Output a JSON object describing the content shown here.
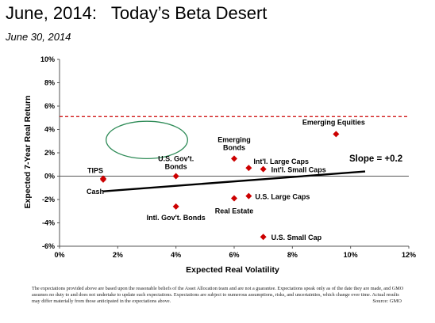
{
  "header": {
    "title": "June, 2014:   Today’s Beta Desert",
    "subtitle": "June 30, 2014"
  },
  "chart_data": {
    "type": "scatter",
    "xlabel": "Expected Real Volatility",
    "ylabel": "Expected 7-Year Real Return",
    "xlim": [
      0,
      12
    ],
    "ylim": [
      -6,
      10
    ],
    "x_ticks": [
      "0%",
      "2%",
      "4%",
      "6%",
      "8%",
      "10%",
      "12%"
    ],
    "y_ticks": [
      "10%",
      "8%",
      "6%",
      "4%",
      "2%",
      "0%",
      "-2%",
      "-4%",
      "-6%"
    ],
    "grid": "none",
    "marker_color": "#cc0000",
    "points": [
      {
        "name": "TIPS",
        "x": 1.5,
        "y": -0.2
      },
      {
        "name": "Cash",
        "x": 1.5,
        "y": -0.3
      },
      {
        "name": "U.S. Gov't. Bonds",
        "x": 4.0,
        "y": 0.0
      },
      {
        "name": "Intl. Gov't. Bonds",
        "x": 4.0,
        "y": -2.6
      },
      {
        "name": "Emerging Bonds",
        "x": 6.0,
        "y": 1.5
      },
      {
        "name": "Int'l. Large Caps",
        "x": 6.5,
        "y": 0.7
      },
      {
        "name": "Int'l. Small Caps",
        "x": 7.0,
        "y": 0.6
      },
      {
        "name": "Real Estate",
        "x": 6.0,
        "y": -1.9
      },
      {
        "name": "U.S. Large Caps",
        "x": 6.5,
        "y": -1.7
      },
      {
        "name": "U.S. Small Cap",
        "x": 7.0,
        "y": -5.2
      },
      {
        "name": "Emerging Equities",
        "x": 9.5,
        "y": 3.6
      }
    ],
    "reference_line": {
      "y": 5.1,
      "style": "dashed",
      "color": "#cc0000"
    },
    "trend_line": {
      "x": [
        1.5,
        10.5
      ],
      "y": [
        -1.3,
        0.4
      ],
      "color": "#000000"
    },
    "highlight_ellipse": {
      "cx": 3.0,
      "cy": 3.1,
      "rx": 1.4,
      "ry": 1.6,
      "color": "#2e8b57"
    },
    "annotation": "Slope = +0.2"
  },
  "footnote": {
    "text": "The expectations provided above are based upon the reasonable beliefs of the Asset Allocation team and are not a guarantee.  Expectations speak only as of the date they are made, and GMO assumes no duty to and does not undertake to update such expectations. Expectations are subject to numerous assumptions, risks, and uncertainties, which change over time. Actual results may differ materially from those anticipated in the expectations above.",
    "source": "Source:  GMO"
  }
}
